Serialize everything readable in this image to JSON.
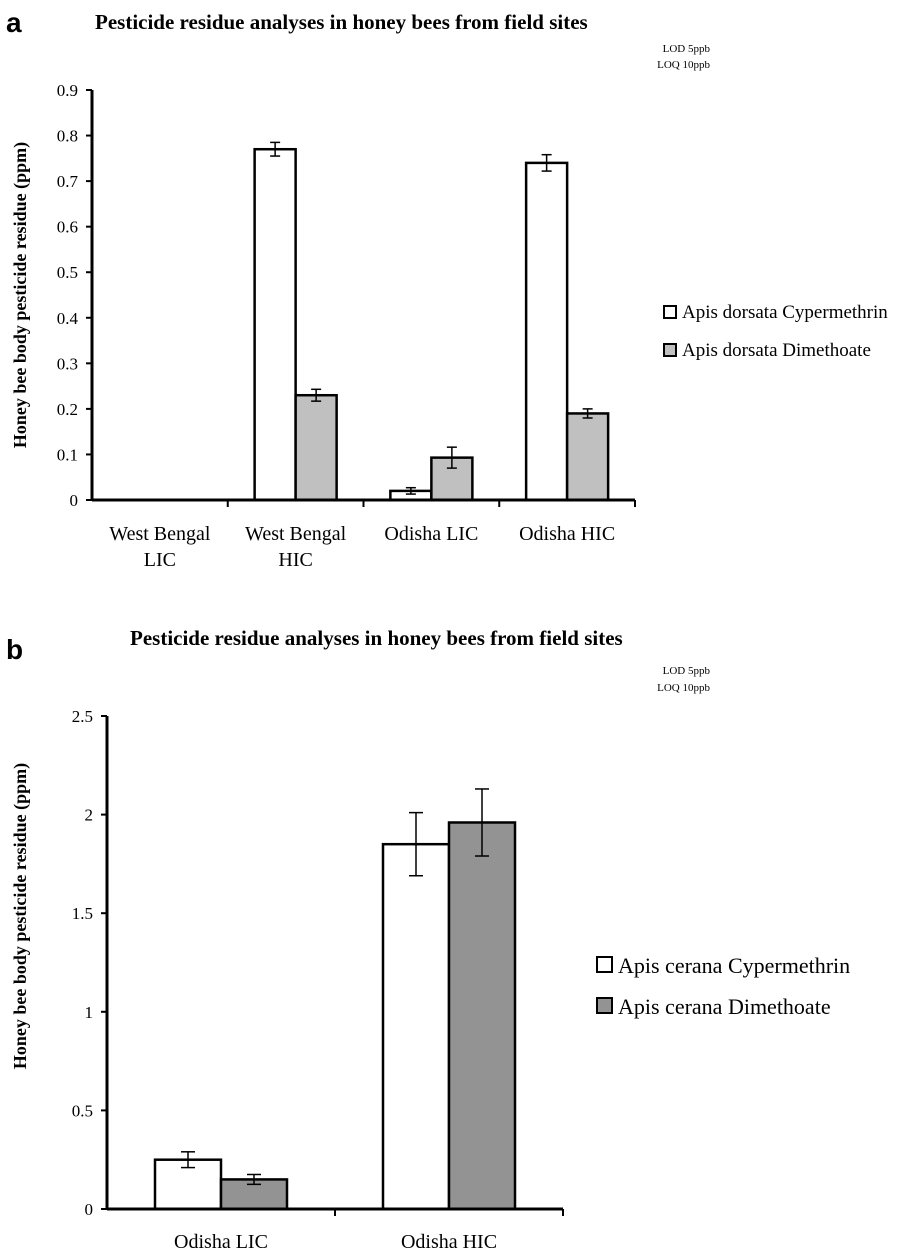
{
  "chart_data": [
    {
      "panel_label": "a",
      "type": "bar",
      "title": "Pesticide residue analyses in honey bees from field sites",
      "notes": [
        "LOD 5ppb",
        "LOQ 10ppb"
      ],
      "ylabel": "Honey bee body pesticide residue  (ppm)",
      "xlabel": "",
      "ylim": [
        0,
        0.9
      ],
      "yticks": [
        0,
        0.1,
        0.2,
        0.3,
        0.4,
        0.5,
        0.6,
        0.7,
        0.8,
        0.9
      ],
      "ytick_labels": [
        "0",
        "0.1",
        "0.2",
        "0.3",
        "0.4",
        "0.5",
        "0.6",
        "0.7",
        "0.8",
        "0.9"
      ],
      "categories": [
        [
          "West Bengal",
          "LIC"
        ],
        [
          "West Bengal",
          "HIC"
        ],
        [
          "Odisha LIC"
        ],
        [
          "Odisha HIC"
        ]
      ],
      "legend_position": "right",
      "grid": false,
      "series": [
        {
          "name": "Apis dorsata Cypermethrin",
          "color": "#ffffff",
          "values": [
            0,
            0.77,
            0.02,
            0.74
          ],
          "errors": [
            0,
            0.015,
            0.007,
            0.018
          ]
        },
        {
          "name": "Apis dorsata Dimethoate",
          "color": "#c0c0c0",
          "values": [
            0,
            0.23,
            0.093,
            0.19
          ],
          "errors": [
            0,
            0.013,
            0.023,
            0.01
          ]
        }
      ]
    },
    {
      "panel_label": "b",
      "type": "bar",
      "title": "Pesticide residue analyses in honey bees from field sites",
      "notes": [
        "LOD 5ppb",
        "LOQ 10ppb"
      ],
      "ylabel": "Honey bee body pesticide residue  (ppm)",
      "xlabel": "",
      "ylim": [
        0,
        2.5
      ],
      "yticks": [
        0,
        0.5,
        1,
        1.5,
        2,
        2.5
      ],
      "ytick_labels": [
        "0",
        "0.5",
        "1",
        "1.5",
        "2",
        "2.5"
      ],
      "categories": [
        [
          "Odisha LIC"
        ],
        [
          "Odisha HIC"
        ]
      ],
      "legend_position": "right",
      "grid": false,
      "series": [
        {
          "name": "Apis cerana  Cypermethrin",
          "color": "#ffffff",
          "values": [
            0.25,
            1.85
          ],
          "errors": [
            0.04,
            0.16
          ]
        },
        {
          "name": "Apis cerana  Dimethoate",
          "color": "#939393",
          "values": [
            0.15,
            1.96
          ],
          "errors": [
            0.025,
            0.17
          ]
        }
      ]
    }
  ]
}
